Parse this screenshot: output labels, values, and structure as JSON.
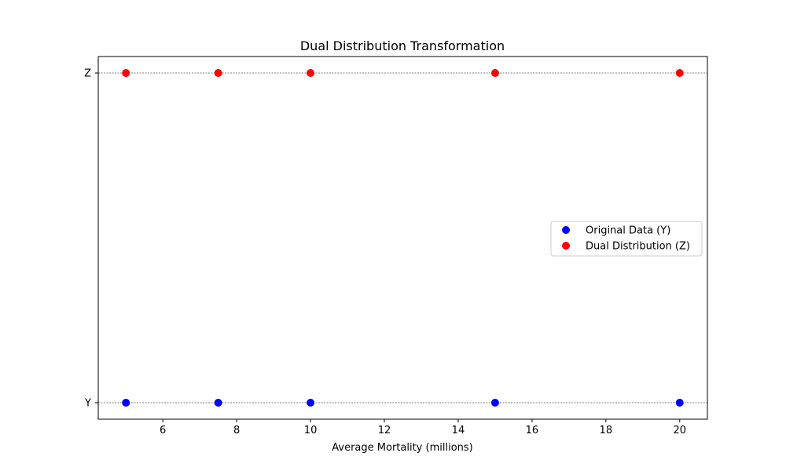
{
  "chart_data": {
    "type": "scatter",
    "title": "Dual Distribution Transformation",
    "xlabel": "Average Mortality (millions)",
    "ylabel": "",
    "xlim": [
      4.25,
      20.75
    ],
    "x_ticks": [
      6,
      8,
      10,
      12,
      14,
      16,
      18,
      20
    ],
    "y_categories": [
      "Y",
      "Z"
    ],
    "grid": false,
    "reference_lines": [
      "Y",
      "Z"
    ],
    "legend_position": "center-right",
    "series": [
      {
        "name": "Original Data (Y)",
        "color": "#0000ff",
        "category": "Y",
        "x": [
          5,
          7.5,
          10,
          15,
          20
        ]
      },
      {
        "name": "Dual Distribution (Z)",
        "color": "#ff0000",
        "category": "Z",
        "x": [
          5,
          7.5,
          10,
          15,
          20
        ]
      }
    ]
  }
}
